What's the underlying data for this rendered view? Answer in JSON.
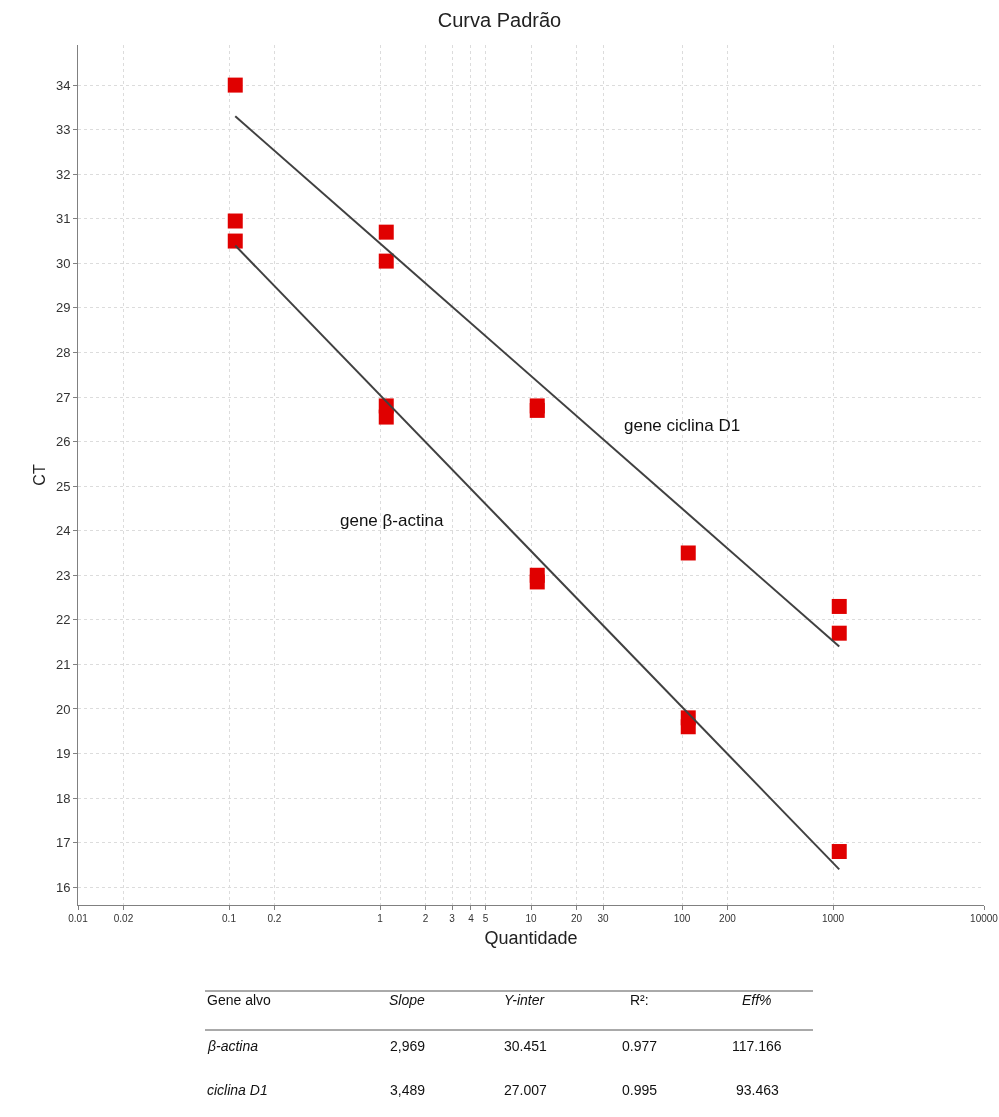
{
  "chart_data": {
    "type": "scatter",
    "title": "Curva Padrão",
    "xlabel": "Quantidade",
    "ylabel": "CT",
    "log": "x",
    "xlim": [
      0.01,
      10000
    ],
    "ylim": [
      15.6,
      34.9
    ],
    "xticks": [
      0.01,
      0.02,
      0.1,
      0.2,
      1,
      2,
      3,
      4,
      5,
      10,
      20,
      30,
      100,
      200,
      1000,
      10000
    ],
    "yticks": [
      16,
      17,
      18,
      19,
      20,
      21,
      22,
      23,
      24,
      25,
      26,
      27,
      28,
      29,
      30,
      31,
      32,
      33,
      34
    ],
    "grid": true,
    "marker": "square",
    "series": [
      {
        "color": "#e00000",
        "x": [
          0.11,
          1.1,
          1.1,
          11,
          11,
          110,
          1100,
          1100
        ],
        "values": [
          34.0,
          30.7,
          30.05,
          26.8,
          26.7,
          23.5,
          22.3,
          21.7
        ]
      },
      {
        "color": "#e00000",
        "x": [
          0.11,
          0.11,
          1.1,
          1.1,
          11,
          11,
          110,
          110,
          1100
        ],
        "values": [
          30.95,
          30.5,
          26.8,
          26.55,
          23.0,
          22.85,
          19.8,
          19.6,
          16.8
        ]
      },
      {
        "type": "line",
        "color": "#404040",
        "marker": "none",
        "x": [
          0.11,
          1100
        ],
        "values": [
          33.3,
          21.4
        ]
      },
      {
        "type": "line",
        "color": "#404040",
        "marker": "none",
        "x": [
          0.11,
          1100
        ],
        "values": [
          30.4,
          16.4
        ]
      }
    ],
    "annotations": [
      "gene ciclina D1",
      "gene β-actina",
      "Gene alvo",
      "Slope",
      "Y-inter",
      "R²:",
      "Eff%",
      "β-actina",
      "2,969",
      "30.451",
      "0.977",
      "117.166",
      "ciclina D1",
      "3,489",
      "27.007",
      "0.995",
      "93.463"
    ]
  }
}
